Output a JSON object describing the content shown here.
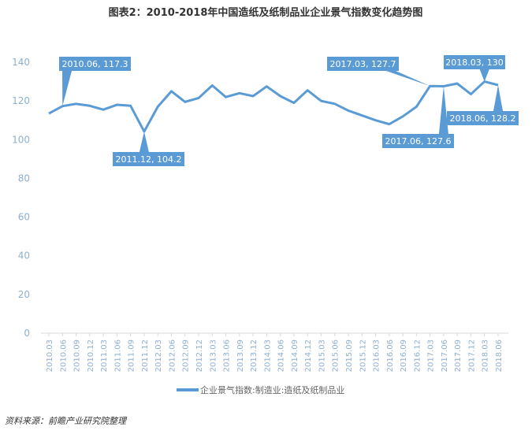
{
  "chart_data": {
    "type": "line",
    "title": "图表2：2010-2018年中国造纸及纸制品业企业景气指数变化趋势图",
    "source": "资料来源：前瞻产业研究院整理",
    "categories": [
      "2010.03",
      "2010.06",
      "2010.09",
      "2010.12",
      "2011.03",
      "2011.06",
      "2011.09",
      "2011.12",
      "2012.03",
      "2012.06",
      "2012.09",
      "2012.12",
      "2013.03",
      "2013.06",
      "2013.09",
      "2013.12",
      "2014.03",
      "2014.06",
      "2014.09",
      "2014.12",
      "2015.03",
      "2015.06",
      "2015.09",
      "2015.12",
      "2016.03",
      "2016.06",
      "2016.09",
      "2016.12",
      "2017.03",
      "2017.06",
      "2017.09",
      "2017.12",
      "2018.03",
      "2018.06"
    ],
    "series": [
      {
        "name": "企业景气指数:制造业:造纸及纸制品业",
        "color": "#5b9bd5",
        "values": [
          113.5,
          117.3,
          118.5,
          117.5,
          115.5,
          118,
          117.5,
          104.2,
          117,
          125,
          119.5,
          121.5,
          128,
          122,
          124,
          122.5,
          127.5,
          122.5,
          119,
          125.5,
          120,
          118.5,
          115,
          112.5,
          110,
          108,
          112,
          117,
          127.7,
          127.6,
          129,
          123.5,
          130,
          128.2
        ]
      }
    ],
    "ylim": [
      0,
      140
    ],
    "yticks": [
      0,
      20,
      40,
      60,
      80,
      100,
      120,
      140
    ],
    "annotations": [
      "2010.06, 117.3",
      "2011.12, 104.2",
      "2017.03, 127.7",
      "2017.06, 127.6",
      "2018.03, 130",
      "2018.06, 128.2"
    ],
    "legend": "bottom"
  }
}
